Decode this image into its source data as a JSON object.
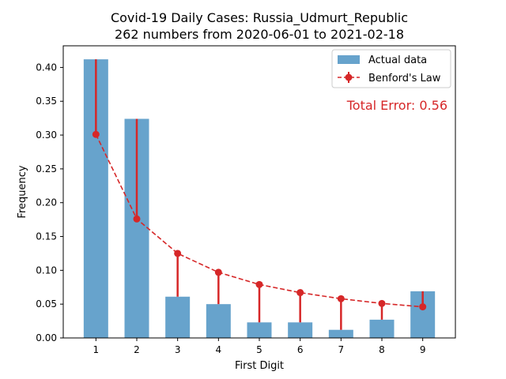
{
  "chart_data": {
    "type": "bar",
    "title_line1": "Covid-19 Daily Cases: Russia_Udmurt_Republic",
    "title_line2": "262 numbers from 2020-06-01 to 2021-02-18",
    "xlabel": "First Digit",
    "ylabel": "Frequency",
    "categories": [
      "1",
      "2",
      "3",
      "4",
      "5",
      "6",
      "7",
      "8",
      "9"
    ],
    "ylim": [
      0,
      0.432
    ],
    "yticks": [
      "0.00",
      "0.05",
      "0.10",
      "0.15",
      "0.20",
      "0.25",
      "0.30",
      "0.35",
      "0.40"
    ],
    "series": [
      {
        "name": "Actual data",
        "type": "bar",
        "color": "#5f9ec9",
        "values": [
          0.412,
          0.324,
          0.061,
          0.05,
          0.023,
          0.023,
          0.012,
          0.027,
          0.069
        ]
      },
      {
        "name": "Benford's Law",
        "type": "line",
        "color": "#d62728",
        "values": [
          0.301,
          0.176,
          0.125,
          0.097,
          0.079,
          0.067,
          0.058,
          0.051,
          0.046
        ]
      }
    ],
    "annotation": "Total Error: 0.56",
    "annotation_color": "#d62728",
    "legend_position": "top-right",
    "grid": false
  }
}
